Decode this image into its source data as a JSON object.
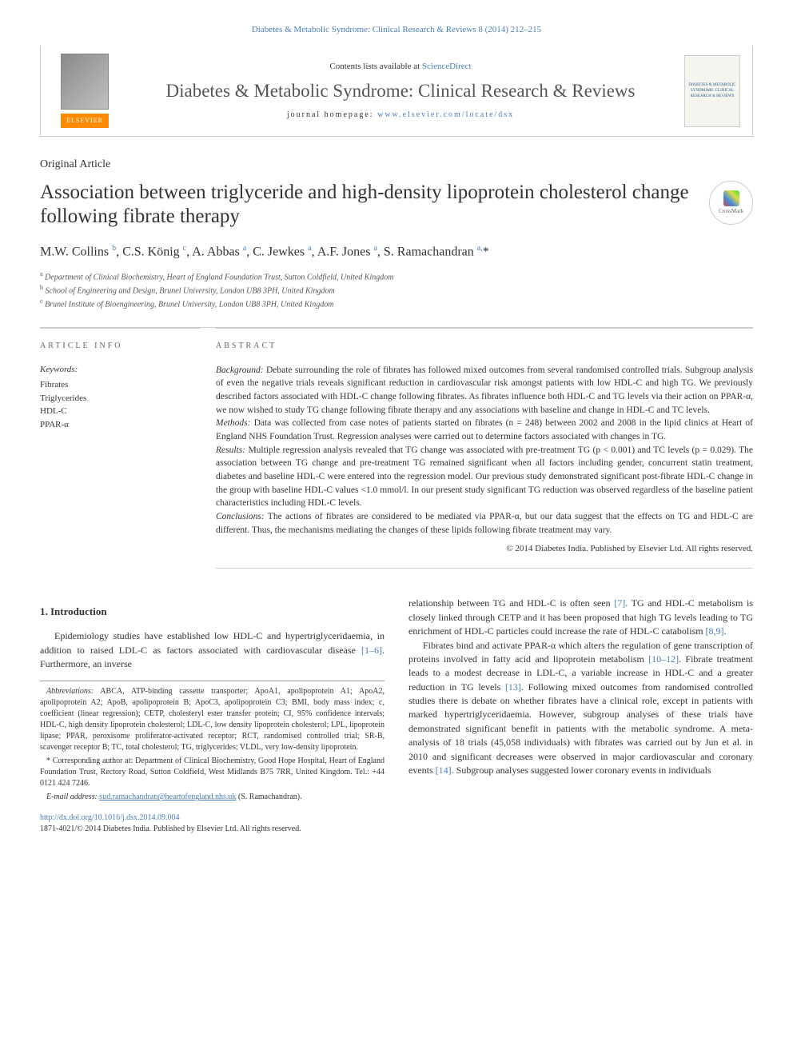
{
  "citation": "Diabetes & Metabolic Syndrome: Clinical Research & Reviews 8 (2014) 212–215",
  "header": {
    "contents_prefix": "Contents lists available at ",
    "contents_link": "ScienceDirect",
    "journal_title": "Diabetes & Metabolic Syndrome: Clinical Research & Reviews",
    "homepage_prefix": "journal homepage: ",
    "homepage_url": "www.elsevier.com/locate/dsx",
    "elsevier": "ELSEVIER",
    "cover_text": "DIABETES & METABOLIC SYNDROME: CLINICAL RESEARCH & REVIEWS"
  },
  "article": {
    "type": "Original Article",
    "title": "Association between triglyceride and high-density lipoprotein cholesterol change following fibrate therapy",
    "crossmark": "CrossMark"
  },
  "authors_html": "M.W. Collins <sup>b</sup>, C.S. König <sup>c</sup>, A. Abbas <sup>a</sup>, C. Jewkes <sup>a</sup>, A.F. Jones <sup>a</sup>, S. Ramachandran <sup>a,</sup>*",
  "affiliations": {
    "a": "Department of Clinical Biochemistry, Heart of England Foundation Trust, Sutton Coldfield, United Kingdom",
    "b": "School of Engineering and Design, Brunel University, London UB8 3PH, United Kingdom",
    "c": "Brunel Institute of Bioengineering, Brunel University, London UB8 3PH, United Kingdom"
  },
  "article_info": {
    "heading": "ARTICLE INFO",
    "keywords_label": "Keywords:",
    "keywords": [
      "Fibrates",
      "Triglycerides",
      "HDL-C",
      "PPAR-α"
    ]
  },
  "abstract": {
    "heading": "ABSTRACT",
    "background_label": "Background:",
    "background": " Debate surrounding the role of fibrates has followed mixed outcomes from several randomised controlled trials. Subgroup analysis of even the negative trials reveals significant reduction in cardiovascular risk amongst patients with low HDL-C and high TG. We previously described factors associated with HDL-C change following fibrates. As fibrates influence both HDL-C and TG levels via their action on PPAR-α, we now wished to study TG change following fibrate therapy and any associations with baseline and change in HDL-C and TC levels.",
    "methods_label": "Methods:",
    "methods": " Data was collected from case notes of patients started on fibrates (n = 248) between 2002 and 2008 in the lipid clinics at Heart of England NHS Foundation Trust. Regression analyses were carried out to determine factors associated with changes in TG.",
    "results_label": "Results:",
    "results": " Multiple regression analysis revealed that TG change was associated with pre-treatment TG (p < 0.001) and TC levels (p = 0.029). The association between TG change and pre-treatment TG remained significant when all factors including gender, concurrent statin treatment, diabetes and baseline HDL-C were entered into the regression model. Our previous study demonstrated significant post-fibrate HDL-C change in the group with baseline HDL-C values <1.0 mmol/l. In our present study significant TG reduction was observed regardless of the baseline patient characteristics including HDL-C levels.",
    "conclusions_label": "Conclusions:",
    "conclusions": " The actions of fibrates are considered to be mediated via PPAR-α, but our data suggest that the effects on TG and HDL-C are different. Thus, the mechanisms mediating the changes of these lipids following fibrate treatment may vary.",
    "copyright": "© 2014 Diabetes India. Published by Elsevier Ltd. All rights reserved."
  },
  "body": {
    "intro_heading": "1. Introduction",
    "intro_p1_pre": "Epidemiology studies have established low HDL-C and hypertriglyceridaemia, in addition to raised LDL-C as factors associated with cardiovascular disease ",
    "intro_p1_ref": "[1–6]",
    "intro_p1_post": ". Furthermore, an inverse",
    "col2_p1_a": "relationship between TG and HDL-C is often seen ",
    "col2_p1_ref1": "[7]",
    "col2_p1_b": ". TG and HDL-C metabolism is closely linked through CETP and it has been proposed that high TG levels leading to TG enrichment of HDL-C particles could increase the rate of HDL-C catabolism ",
    "col2_p1_ref2": "[8,9]",
    "col2_p1_c": ".",
    "col2_p2_a": "Fibrates bind and activate PPAR-α which alters the regulation of gene transcription of proteins involved in fatty acid and lipoprotein metabolism ",
    "col2_p2_ref1": "[10–12]",
    "col2_p2_b": ". Fibrate treatment leads to a modest decrease in LDL-C, a variable increase in HDL-C and a greater reduction in TG levels ",
    "col2_p2_ref2": "[13]",
    "col2_p2_c": ". Following mixed outcomes from randomised controlled studies there is debate on whether fibrates have a clinical role, except in patients with marked hypertriglyceridaemia. However, subgroup analyses of these trials have demonstrated significant benefit in patients with the metabolic syndrome. A meta-analysis of 18 trials (45,058 individuals) with fibrates was carried out by Jun et al. in 2010 and significant decreases were observed in major cardiovascular and coronary events ",
    "col2_p2_ref3": "[14]",
    "col2_p2_d": ". Subgroup analyses suggested lower coronary events in individuals"
  },
  "footnotes": {
    "abbrev_label": "Abbreviations:",
    "abbrev": " ABCA, ATP-binding cassette transporter; ApoA1, apolipoprotein A1; ApoA2, apolipoprotein A2; ApoB, apolipoprotein B; ApoC3, apolipoprotein C3; BMI, body mass index; c, coefficient (linear regression); CETP, cholesteryl ester transfer protein; CI, 95% confidence intervals; HDL-C, high density lipoprotein cholesterol; LDL-C, low density lipoprotein cholesterol; LPL, lipoprotein lipase; PPAR, peroxisome proliferator-activated receptor; RCT, randomised controlled trial; SR-B, scavenger receptor B; TC, total cholesterol; TG, triglycerides; VLDL, very low-density lipoprotein.",
    "corr": "* Corresponding author at: Department of Clinical Biochemistry, Good Hope Hospital, Heart of England Foundation Trust, Rectory Road, Sutton Coldfield, West Midlands B75 7RR, United Kingdom. Tel.: +44 0121 424 7246.",
    "email_label": "E-mail address:",
    "email": "sud.ramachandran@heartofengland.nhs.uk",
    "email_suffix": " (S. Ramachandran)."
  },
  "doi": {
    "url": "http://dx.doi.org/10.1016/j.dsx.2014.09.004",
    "issn_line": "1871-4021/© 2014 Diabetes India. Published by Elsevier Ltd. All rights reserved."
  },
  "colors": {
    "link": "#4a7db8",
    "text": "#333333",
    "border": "#cccccc",
    "elsevier_orange": "#ff8c00"
  }
}
